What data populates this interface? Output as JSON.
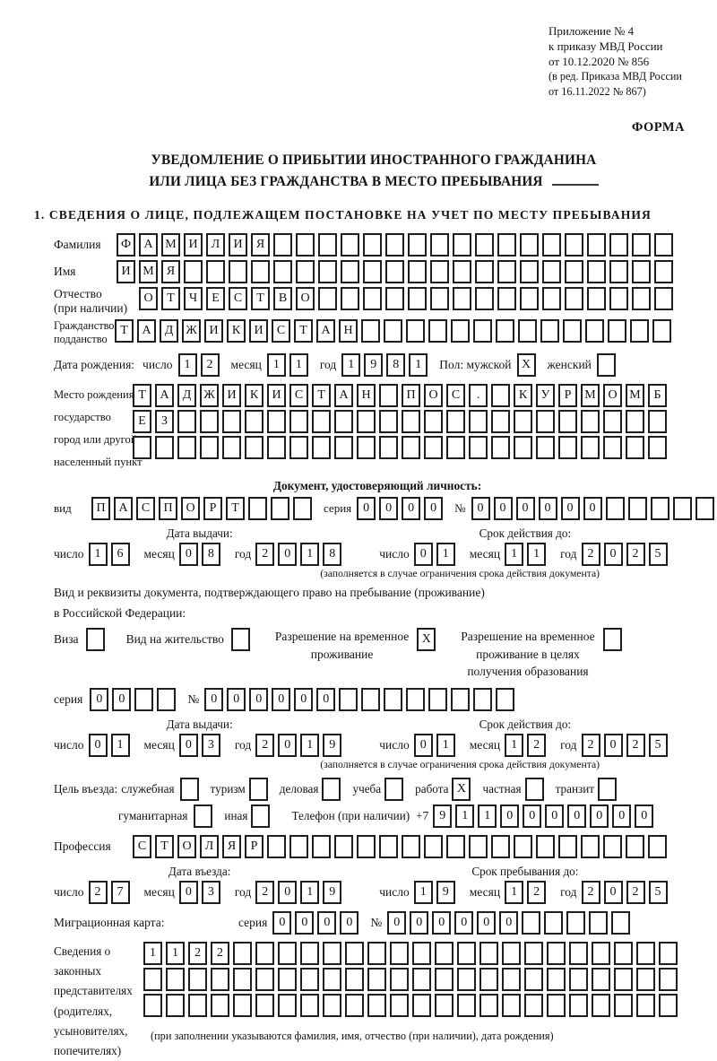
{
  "header": {
    "lines": [
      "Приложение № 4",
      "к приказу МВД России",
      "от 10.12.2020 № 856"
    ],
    "sub_lines": [
      "(в ред. Приказа МВД России",
      "от 16.11.2022 № 867)"
    ],
    "form_label": "ФОРМА"
  },
  "title": {
    "line1": "УВЕДОМЛЕНИЕ О ПРИБЫТИИ ИНОСТРАННОГО ГРАЖДАНИНА",
    "line2": "ИЛИ ЛИЦА БЕЗ ГРАЖДАНСТВА В МЕСТО ПРЕБЫВАНИЯ"
  },
  "section1_heading": "1. СВЕДЕНИЯ О ЛИЦЕ, ПОДЛЕЖАЩЕМ ПОСТАНОВКЕ НА УЧЕТ ПО МЕСТУ ПРЕБЫВАНИЯ",
  "labels": {
    "surname": "Фамилия",
    "name": "Имя",
    "patronymic1": "Отчество",
    "patronymic2": "(при наличии)",
    "citizenship1": "Гражданство,",
    "citizenship2": "подданство",
    "birth_date": "Дата рождения:",
    "day": "число",
    "month": "месяц",
    "year": "год",
    "gender_male": "Пол: мужской",
    "gender_female": "женский",
    "birth_place": [
      "Место рождения:",
      "государство",
      "город или другой",
      "населенный пункт"
    ],
    "id_doc_heading": "Документ, удостоверяющий личность:",
    "doc_type": "вид",
    "series": "серия",
    "num": "№",
    "issue_date": "Дата выдачи:",
    "valid_until": "Срок действия до:",
    "valid_note": "(заполняется в случае ограничения срока действия документа)",
    "residence_line1": "Вид и реквизиты документа, подтверждающего право на пребывание (проживание)",
    "residence_line2": "в Российской Федерации:",
    "visa": "Виза",
    "residence_permit": "Вид на жительство",
    "temp_res1": "Разрешение на временное",
    "temp_res2": "проживание",
    "temp_edu1": "Разрешение на временное",
    "temp_edu2": "проживание в целях",
    "temp_edu3": "получения образования",
    "purpose": "Цель въезда:",
    "p_official": "служебная",
    "p_tourism": "туризм",
    "p_business": "деловая",
    "p_study": "учеба",
    "p_work": "работа",
    "p_private": "частная",
    "p_transit": "транзит",
    "p_humanitarian": "гуманитарная",
    "p_other": "иная",
    "phone": "Телефон (при наличии)",
    "phone_prefix": "+7",
    "profession": "Профессия",
    "entry_date": "Дата въезда:",
    "stay_until": "Срок пребывания до:",
    "migration_card": "Миграционная карта:",
    "legal_reps": [
      "Сведения о",
      "законных",
      "представителях",
      "(родителях,",
      "усыновителях,",
      "попечителях)"
    ],
    "legal_reps_note": "(при заполнении указываются фамилия, имя, отчество (при наличии), дата рождения)"
  },
  "values": {
    "surname": {
      "v": "ФАМИЛИЯ",
      "n": 25
    },
    "name": {
      "v": "ИМЯ",
      "n": 25
    },
    "patronymic": {
      "v": "ОТЧЕСТВО",
      "n": 24
    },
    "citizenship": {
      "v": "ТАДЖИКИСТАН",
      "n": 25
    },
    "birth_day": {
      "v": "12",
      "n": 2
    },
    "birth_month": {
      "v": "11",
      "n": 2
    },
    "birth_year": {
      "v": "1981",
      "n": 4
    },
    "gender_male": {
      "v": "X",
      "n": 1
    },
    "gender_female": {
      "v": " ",
      "n": 1
    },
    "birth_place_row1": {
      "v": "ТАДЖИКИСТАН ПОС. КУРМОМБ",
      "n": 24
    },
    "birth_place_row2": {
      "v": "ЕЗ",
      "n": 24
    },
    "birth_place_row3": {
      "v": "",
      "n": 24
    },
    "id_type": {
      "v": "ПАСПОРТ",
      "n": 10
    },
    "id_series": {
      "v": "0000",
      "n": 4
    },
    "id_number": {
      "v": "000000",
      "n": 11
    },
    "id_issue_day": {
      "v": "16",
      "n": 2
    },
    "id_issue_month": {
      "v": "08",
      "n": 2
    },
    "id_issue_year": {
      "v": "2018",
      "n": 4
    },
    "id_valid_day": {
      "v": "01",
      "n": 2
    },
    "id_valid_month": {
      "v": "11",
      "n": 2
    },
    "id_valid_year": {
      "v": "2025",
      "n": 4
    },
    "cb_visa": {
      "v": " ",
      "n": 1
    },
    "cb_residence_permit": {
      "v": " ",
      "n": 1
    },
    "cb_temp_res": {
      "v": "X",
      "n": 1
    },
    "cb_temp_edu": {
      "v": " ",
      "n": 1
    },
    "res_series": {
      "v": "00",
      "n": 4
    },
    "res_number": {
      "v": "000000",
      "n": 14
    },
    "res_issue_day": {
      "v": "01",
      "n": 2
    },
    "res_issue_month": {
      "v": "03",
      "n": 2
    },
    "res_issue_year": {
      "v": "2019",
      "n": 4
    },
    "res_valid_day": {
      "v": "01",
      "n": 2
    },
    "res_valid_month": {
      "v": "12",
      "n": 2
    },
    "res_valid_year": {
      "v": "2025",
      "n": 4
    },
    "cb_official": {
      "v": " ",
      "n": 1
    },
    "cb_tourism": {
      "v": " ",
      "n": 1
    },
    "cb_business": {
      "v": " ",
      "n": 1
    },
    "cb_study": {
      "v": " ",
      "n": 1
    },
    "cb_work": {
      "v": "X",
      "n": 1
    },
    "cb_private": {
      "v": " ",
      "n": 1
    },
    "cb_transit": {
      "v": " ",
      "n": 1
    },
    "cb_humanitarian": {
      "v": " ",
      "n": 1
    },
    "cb_other": {
      "v": " ",
      "n": 1
    },
    "phone": {
      "v": "9110000000",
      "n": 10
    },
    "profession": {
      "v": "СТОЛЯР",
      "n": 24
    },
    "entry_day": {
      "v": "27",
      "n": 2
    },
    "entry_month": {
      "v": "03",
      "n": 2
    },
    "entry_year": {
      "v": "2019",
      "n": 4
    },
    "stay_day": {
      "v": "19",
      "n": 2
    },
    "stay_month": {
      "v": "12",
      "n": 2
    },
    "stay_year": {
      "v": "2025",
      "n": 4
    },
    "mc_series": {
      "v": "0000",
      "n": 4
    },
    "mc_number": {
      "v": "000000",
      "n": 11
    },
    "reps_row1": {
      "v": "1122",
      "n": 24
    },
    "reps_row2": {
      "v": "",
      "n": 24
    },
    "reps_row3": {
      "v": "",
      "n": 24
    }
  }
}
